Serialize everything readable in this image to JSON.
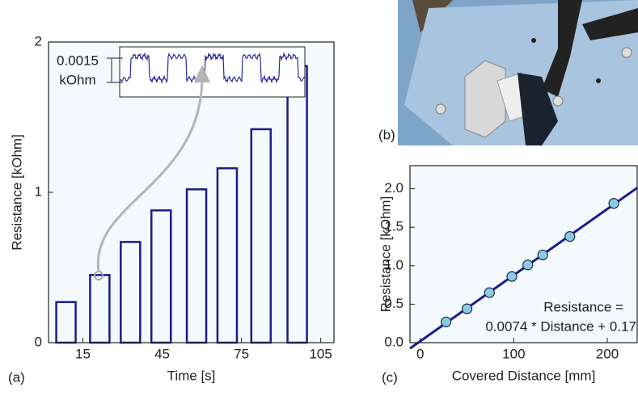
{
  "chart_data": [
    {
      "type": "bar",
      "panel_label": "(a)",
      "xlabel": "Time [s]",
      "ylabel": "Resistance [kOhm]",
      "x": [
        8.6,
        21.4,
        33,
        44.6,
        58,
        69.6,
        82.4,
        96.1
      ],
      "values": [
        0.27,
        0.45,
        0.67,
        0.88,
        1.02,
        1.16,
        1.42,
        1.84
      ],
      "color": "#1c1c8a",
      "xlim": [
        2,
        110
      ],
      "xticks": [
        15,
        45,
        75,
        105
      ],
      "ylim": [
        0,
        2
      ],
      "yticks": [
        0,
        1,
        2
      ],
      "inset": {
        "labels": [
          "0.0015",
          "kOhm"
        ]
      }
    },
    {
      "type": "scatter",
      "panel_label": "(c)",
      "xlabel": "Covered Distance [mm]",
      "ylabel": "Resistance [kOhm]",
      "x": [
        27.6,
        50,
        74,
        98,
        115,
        131,
        160,
        207
      ],
      "values": [
        0.27,
        0.44,
        0.65,
        0.86,
        1.01,
        1.14,
        1.38,
        1.81
      ],
      "color": "#8ccbe0",
      "line_color": "#1c1c8a",
      "fit_line": true,
      "xlim": [
        -11,
        232
      ],
      "xticks": [
        0,
        100,
        200
      ],
      "ylim": [
        0,
        2.3
      ],
      "yticks": [
        {
          "value": 0,
          "label": "0.0"
        },
        0.5,
        {
          "value": 1,
          "label": "1.0"
        },
        1.5,
        {
          "value": 2,
          "label": "2.0"
        }
      ],
      "annotation": [
        "Resistance =",
        "0.0074 * Distance + 0.17"
      ]
    }
  ],
  "photo": {
    "label": "(b)"
  }
}
